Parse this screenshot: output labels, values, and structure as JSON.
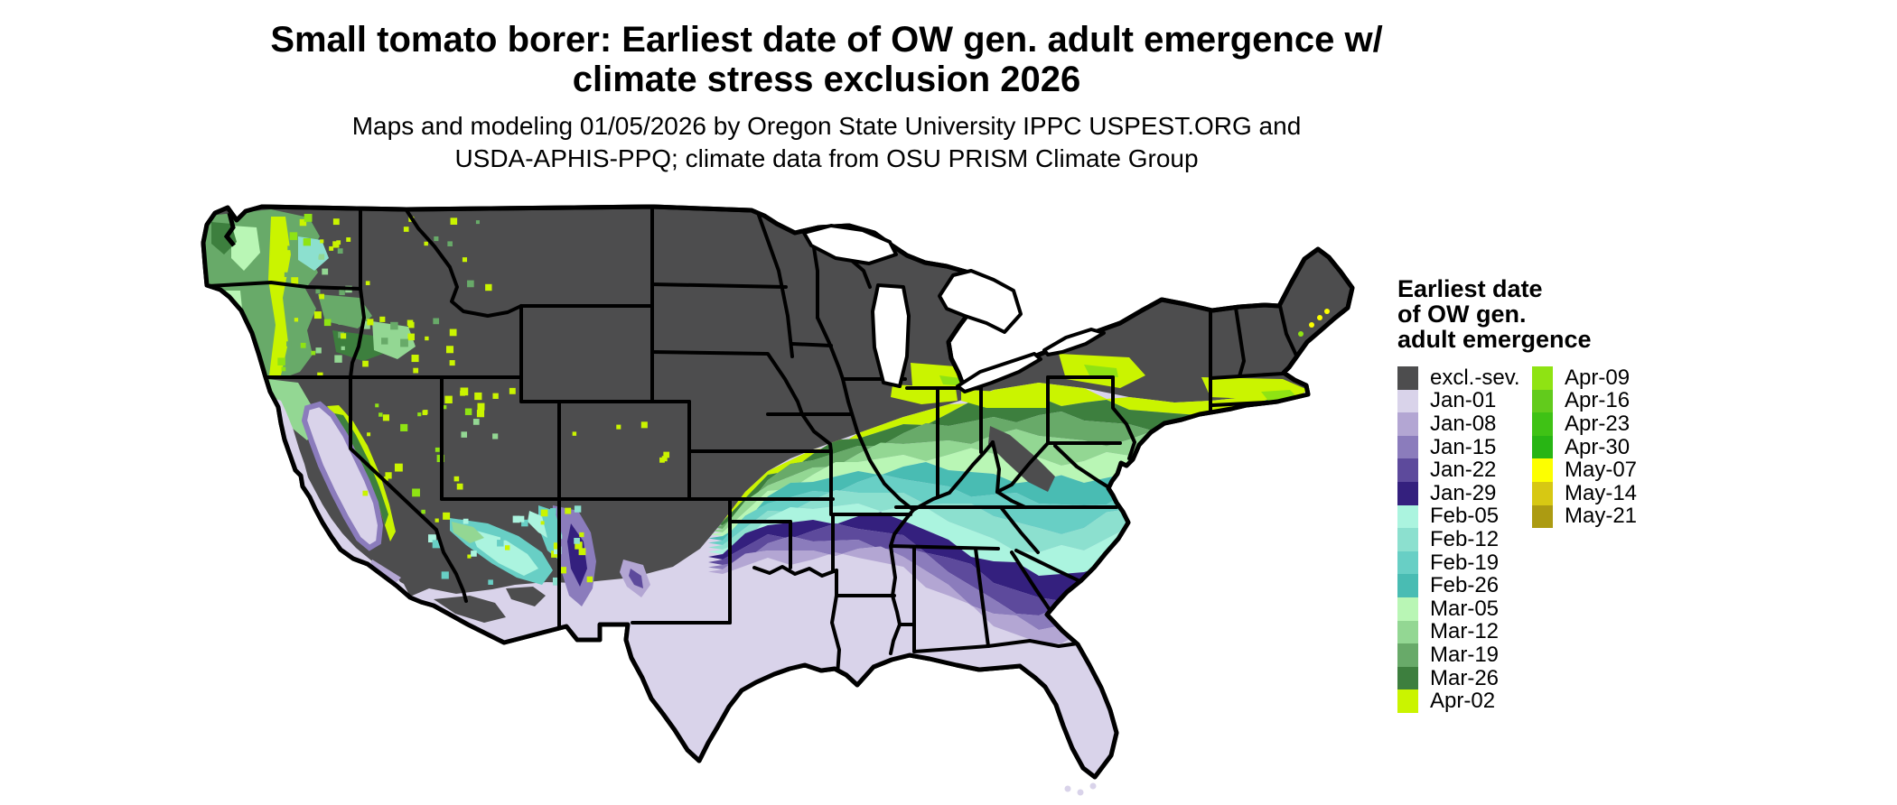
{
  "title": {
    "line1": "Small tomato borer: Earliest date of OW gen. adult emergence w/",
    "line2": "climate stress exclusion 2026"
  },
  "subtitle": {
    "line1": "Maps and modeling 01/05/2026 by Oregon State University IPPC USPEST.ORG and",
    "line2": "USDA-APHIS-PPQ; climate data from OSU PRISM Climate Group"
  },
  "legend": {
    "title_lines": [
      "Earliest date",
      "of OW gen.",
      "adult emergence"
    ],
    "columns": [
      [
        {
          "label": "excl.-sev.",
          "color": "#4d4d4e"
        },
        {
          "label": "Jan-01",
          "color": "#d9d3ea"
        },
        {
          "label": "Jan-08",
          "color": "#b3a6d3"
        },
        {
          "label": "Jan-15",
          "color": "#8b7cbc"
        },
        {
          "label": "Jan-22",
          "color": "#5d4a9c"
        },
        {
          "label": "Jan-29",
          "color": "#34207e"
        },
        {
          "label": "Feb-05",
          "color": "#abf4df"
        },
        {
          "label": "Feb-12",
          "color": "#8ce0cf"
        },
        {
          "label": "Feb-19",
          "color": "#68cfc5"
        },
        {
          "label": "Feb-26",
          "color": "#49bcb3"
        },
        {
          "label": "Mar-05",
          "color": "#b9f6b5"
        },
        {
          "label": "Mar-12",
          "color": "#93d793"
        },
        {
          "label": "Mar-19",
          "color": "#68aa69"
        },
        {
          "label": "Mar-26",
          "color": "#3d7f3e"
        },
        {
          "label": "Apr-02",
          "color": "#caf400"
        }
      ],
      [
        {
          "label": "Apr-09",
          "color": "#8fe313"
        },
        {
          "label": "Apr-16",
          "color": "#62cb1c"
        },
        {
          "label": "Apr-23",
          "color": "#3fc215"
        },
        {
          "label": "Apr-30",
          "color": "#28b514"
        },
        {
          "label": "May-07",
          "color": "#fdff00"
        },
        {
          "label": "May-14",
          "color": "#d7c813"
        },
        {
          "label": "May-21",
          "color": "#ac9b12"
        }
      ]
    ]
  },
  "map": {
    "region": "Contiguous United States",
    "background_color": "#ffffff",
    "border_color": "#000000",
    "excluded_label": "excl.-sev."
  }
}
